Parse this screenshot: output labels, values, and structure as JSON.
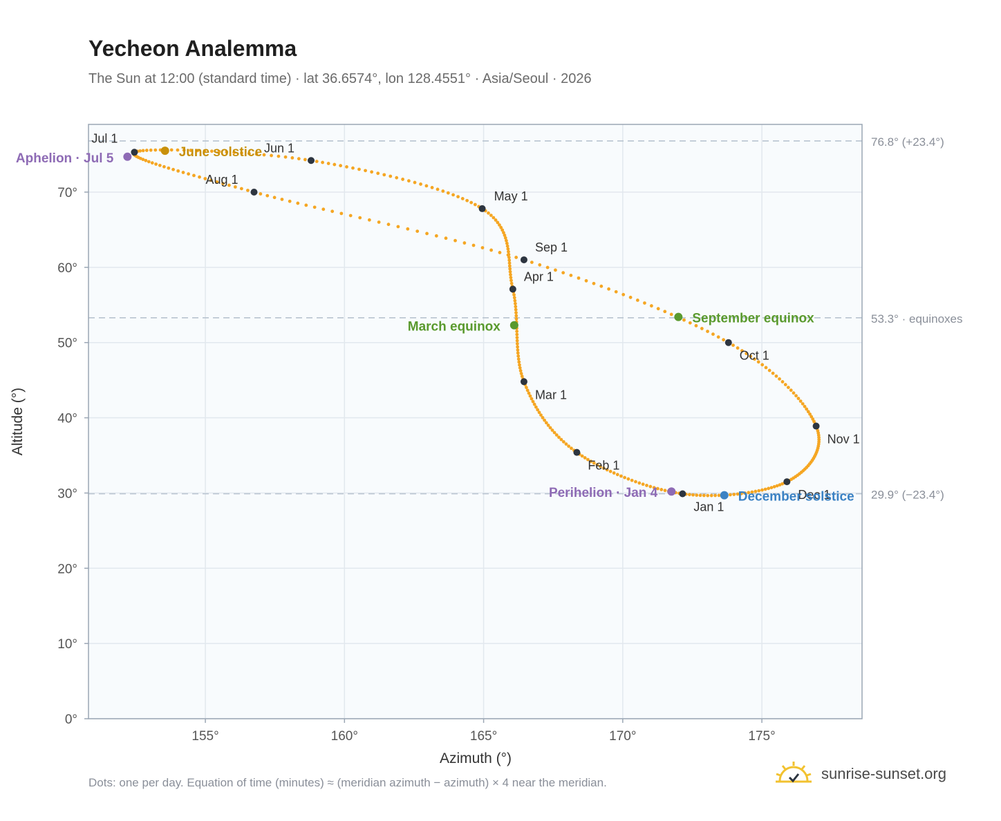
{
  "header": {
    "title": "Yecheon Analemma",
    "subtitle": "The Sun at 12:00 (standard time) · lat 36.6574°, lon 128.4551° · Asia/Seoul · 2026"
  },
  "footer": {
    "note": "Dots: one per day. Equation of time (minutes) ≈ (meridian azimuth − azimuth) × 4 near the meridian.",
    "brand": "sunrise-sunset.org"
  },
  "colors": {
    "curve": "#f5a623",
    "month_marker": "#2d3540",
    "solstice_june": "#c8900a",
    "equinox": "#5a9a2e",
    "december_solstice": "#3b82c4",
    "apsis": "#8e6bb5",
    "reference_line": "#b8c4d0",
    "grid": "#e2e8ee",
    "plot_bg": "#f8fbfd"
  },
  "chart_data": {
    "type": "scatter",
    "title": "Yecheon Analemma",
    "xlabel": "Azimuth (°)",
    "ylabel": "Altitude (°)",
    "xlim": [
      150.8,
      178.6
    ],
    "ylim": [
      0,
      79
    ],
    "x_ticks": [
      155,
      160,
      165,
      170,
      175
    ],
    "x_tick_labels": [
      "155°",
      "160°",
      "165°",
      "170°",
      "175°"
    ],
    "y_ticks": [
      0,
      10,
      20,
      30,
      40,
      50,
      60,
      70
    ],
    "y_tick_labels": [
      "0°",
      "10°",
      "20°",
      "30°",
      "40°",
      "50°",
      "60°",
      "70°"
    ],
    "grid": true,
    "month_points": [
      {
        "label": "Jan 1",
        "day": 1,
        "x": 172.15,
        "y": 29.9
      },
      {
        "label": "Feb 1",
        "day": 32,
        "x": 168.35,
        "y": 35.4
      },
      {
        "label": "Mar 1",
        "day": 60,
        "x": 166.45,
        "y": 44.8
      },
      {
        "label": "Apr 1",
        "day": 91,
        "x": 166.05,
        "y": 57.1
      },
      {
        "label": "May 1",
        "day": 121,
        "x": 164.95,
        "y": 67.8
      },
      {
        "label": "Jun 1",
        "day": 152,
        "x": 158.8,
        "y": 74.2
      },
      {
        "label": "Jul 1",
        "day": 182,
        "x": 152.45,
        "y": 75.3
      },
      {
        "label": "Aug 1",
        "day": 213,
        "x": 156.75,
        "y": 70.0
      },
      {
        "label": "Sep 1",
        "day": 244,
        "x": 166.45,
        "y": 61.0
      },
      {
        "label": "Oct 1",
        "day": 274,
        "x": 173.8,
        "y": 50.0
      },
      {
        "label": "Nov 1",
        "day": 305,
        "x": 176.95,
        "y": 38.9
      },
      {
        "label": "Dec 1",
        "day": 335,
        "x": 175.9,
        "y": 31.5
      }
    ],
    "special_points": [
      {
        "label": "June solstice",
        "day": 172,
        "x": 153.55,
        "y": 75.5,
        "color_key": "solstice_june"
      },
      {
        "label": "Aphelion · Jul 5",
        "day": 186,
        "x": 152.2,
        "y": 74.7,
        "color_key": "apsis"
      },
      {
        "label": "March equinox",
        "day": 79,
        "x": 166.1,
        "y": 52.3,
        "color_key": "equinox"
      },
      {
        "label": "September equinox",
        "day": 266,
        "x": 172.0,
        "y": 53.4,
        "color_key": "equinox"
      },
      {
        "label": "Perihelion · Jan 4",
        "day": 4,
        "x": 171.75,
        "y": 30.2,
        "color_key": "apsis"
      },
      {
        "label": "December solstice",
        "day": 355,
        "x": 173.65,
        "y": 29.7,
        "color_key": "december_solstice"
      }
    ],
    "reference_lines": [
      {
        "y": 76.8,
        "label": "76.8° (+23.4°)"
      },
      {
        "y": 53.3,
        "label": "53.3° · equinoxes"
      },
      {
        "y": 29.9,
        "label": "29.9° (−23.4°)"
      }
    ]
  }
}
